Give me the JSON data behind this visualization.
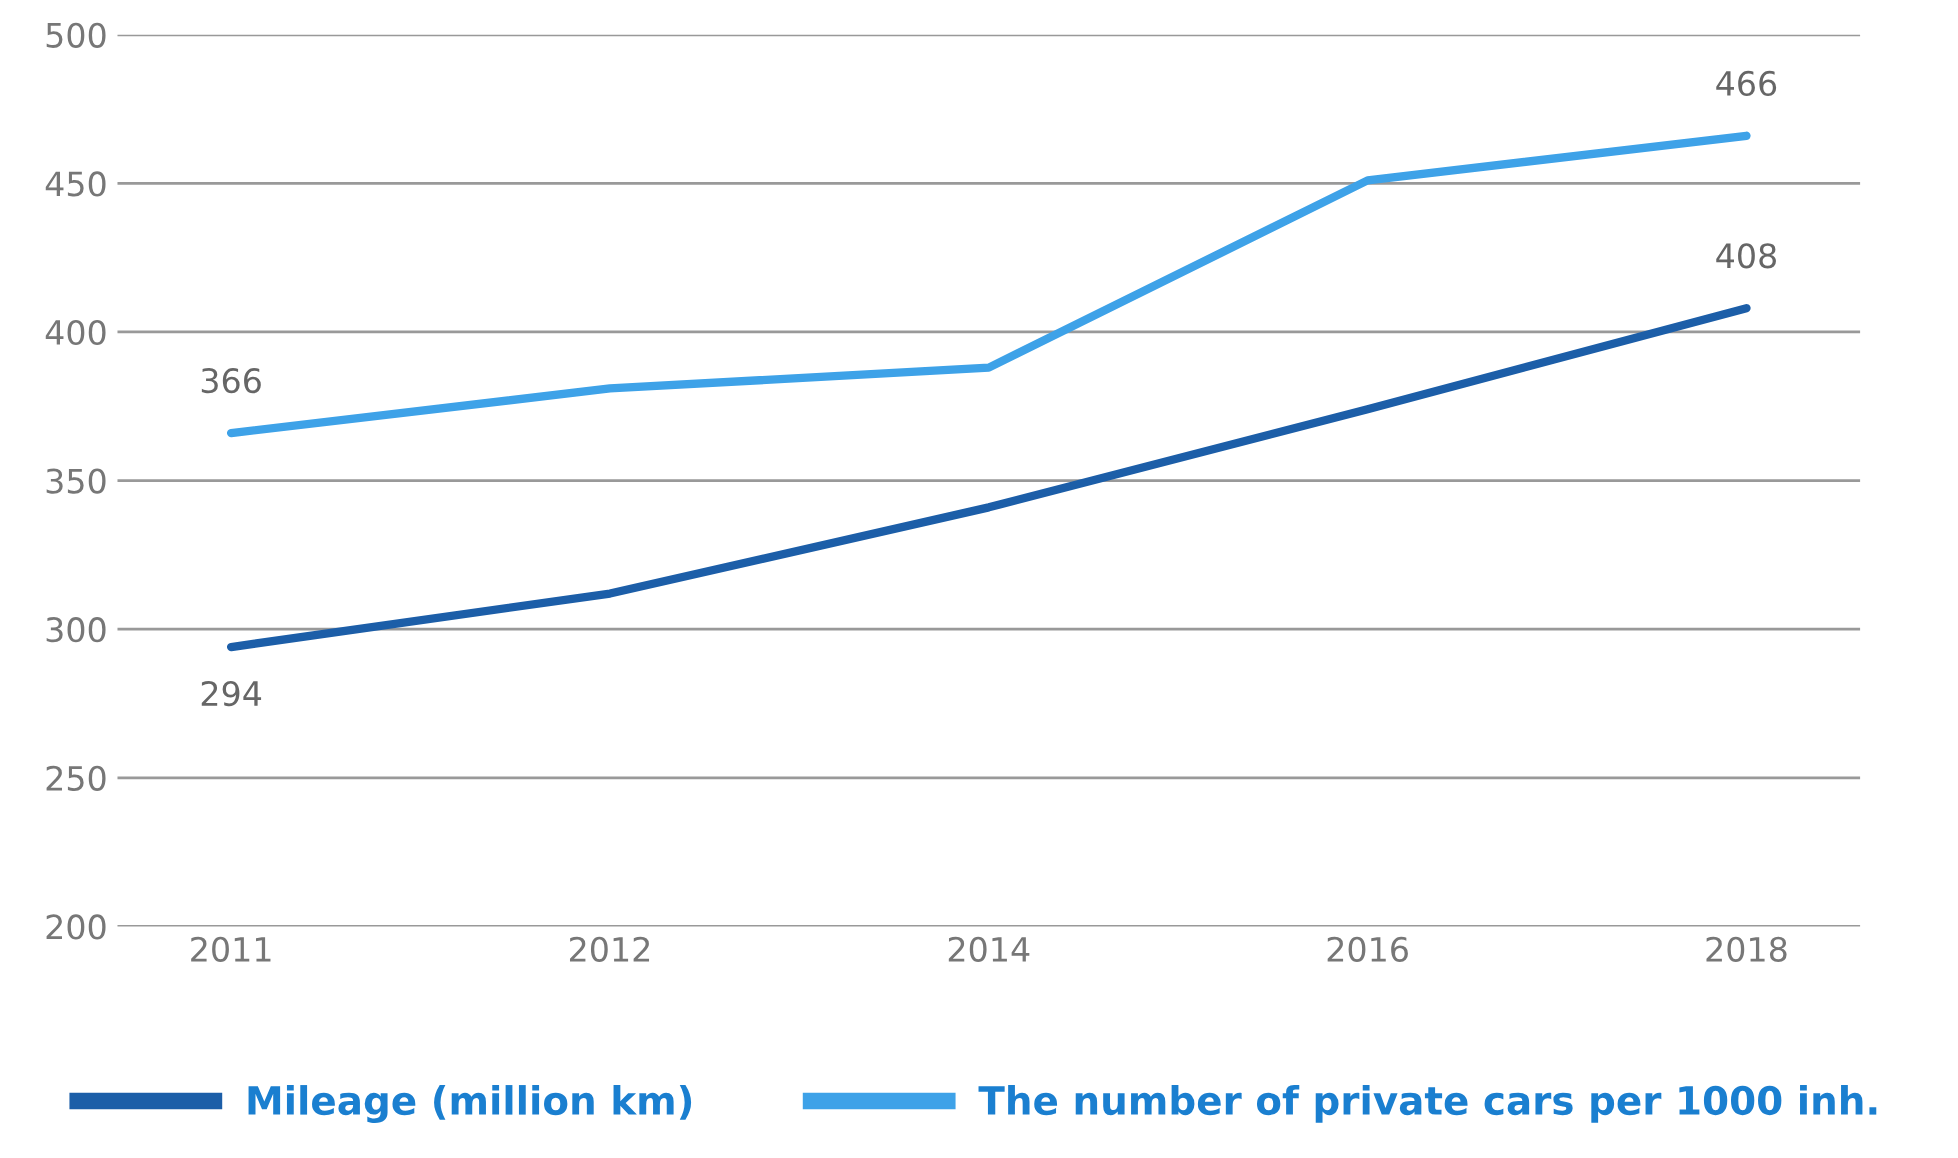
{
  "chart_data": {
    "type": "line",
    "categories": [
      "2011",
      "2012",
      "2014",
      "2016",
      "2018"
    ],
    "series": [
      {
        "name": "Mileage (million km)",
        "color": "#1c5ea8",
        "values": [
          294,
          312,
          341,
          374,
          408
        ],
        "value_labels": [
          "294",
          null,
          null,
          null,
          "408"
        ]
      },
      {
        "name": "The number of private cars per 1000 inh.",
        "color": "#3ea2e8",
        "values": [
          366,
          381,
          388,
          451,
          466
        ],
        "value_labels": [
          "366",
          null,
          null,
          null,
          "466"
        ]
      }
    ],
    "ylim": [
      200,
      500
    ],
    "yticks": [
      200,
      250,
      300,
      350,
      400,
      450,
      500
    ],
    "grid": "y",
    "legend": "bottom",
    "marker": "none",
    "line_style": "solid"
  }
}
